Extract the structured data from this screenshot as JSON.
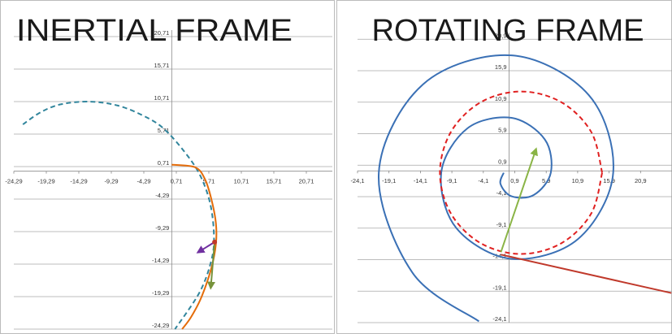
{
  "chart_data": [
    {
      "type": "line",
      "title": "INERTIAL FRAME",
      "grid": "y",
      "xlim": [
        -24.29,
        24.71
      ],
      "ylim": [
        -24.29,
        21.71
      ],
      "xticks": [
        {
          "value": -24.29,
          "label": "-24,29"
        },
        {
          "value": -19.29,
          "label": "-19,29"
        },
        {
          "value": -14.29,
          "label": "-14,29"
        },
        {
          "value": -9.29,
          "label": "-9,29"
        },
        {
          "value": -4.29,
          "label": "-4,29"
        },
        {
          "value": 0.71,
          "label": "0,71"
        },
        {
          "value": 5.71,
          "label": "5,71"
        },
        {
          "value": 10.71,
          "label": "10,71"
        },
        {
          "value": 15.71,
          "label": "15,71"
        },
        {
          "value": 20.71,
          "label": "20,71"
        }
      ],
      "yticks": [
        {
          "value": 20.71,
          "label": "20,71"
        },
        {
          "value": 15.71,
          "label": "15,71"
        },
        {
          "value": 10.71,
          "label": "10,71"
        },
        {
          "value": 5.71,
          "label": "5,71"
        },
        {
          "value": 0.71,
          "label": "0,71"
        },
        {
          "value": -4.29,
          "label": "-4,29"
        },
        {
          "value": -9.29,
          "label": "-9,29"
        },
        {
          "value": -14.29,
          "label": "-14,29"
        },
        {
          "value": -19.29,
          "label": "-19,29"
        },
        {
          "value": -24.29,
          "label": "-24,29"
        }
      ],
      "series": [
        {
          "color": "#31859c",
          "dashed": true,
          "smooth": true,
          "x": [
            -22.9,
            -20.1,
            -17.0,
            -12.6,
            -8.3,
            -4.5,
            -1.4,
            1.8,
            4.3,
            5.9,
            6.5,
            6.1,
            4.3,
            0.5
          ],
          "y": [
            7.2,
            9.1,
            10.3,
            10.7,
            10.1,
            8.6,
            6.7,
            3.2,
            -0.5,
            -4.9,
            -9.9,
            -13.7,
            -18.6,
            -24.3
          ]
        },
        {
          "color": "#e46c0a",
          "smooth": true,
          "x": [
            0,
            3.6,
            5.1,
            6.1,
            6.8,
            6.8,
            6.1,
            4.6,
            3.0,
            1.6
          ],
          "y": [
            1.0,
            0.6,
            -1.2,
            -4.3,
            -8.0,
            -11.2,
            -14.9,
            -19.3,
            -22.4,
            -24.3
          ]
        },
        {
          "color": "#7030a0",
          "arrow": true,
          "x": [
            6.6,
            4.0
          ],
          "y": [
            -10.9,
            -12.5
          ]
        },
        {
          "color": "#77933c",
          "arrow": true,
          "x": [
            6.6,
            6.0
          ],
          "y": [
            -10.9,
            -18.0
          ]
        },
        {
          "color": "#c0392b",
          "marker": true,
          "x": [
            6.6
          ],
          "y": [
            -10.9
          ]
        }
      ]
    },
    {
      "type": "line",
      "title": "ROTATING FRAME",
      "grid": "y",
      "xlim": [
        -24.1,
        25.9
      ],
      "ylim": [
        -24.1,
        21.9
      ],
      "xticks": [
        {
          "value": -24.1,
          "label": "-24,1"
        },
        {
          "value": -19.1,
          "label": "-19,1"
        },
        {
          "value": -14.1,
          "label": "-14,1"
        },
        {
          "value": -9.1,
          "label": "-9,1"
        },
        {
          "value": -4.1,
          "label": "-4,1"
        },
        {
          "value": 0.9,
          "label": "0,9"
        },
        {
          "value": 5.9,
          "label": "5,9"
        },
        {
          "value": 10.9,
          "label": "10,9"
        },
        {
          "value": 15.9,
          "label": "15,9"
        },
        {
          "value": 20.9,
          "label": "20,9"
        }
      ],
      "yticks": [
        {
          "value": 20.9,
          "label": "20,9"
        },
        {
          "value": 15.9,
          "label": "15,9"
        },
        {
          "value": 10.9,
          "label": "10,9"
        },
        {
          "value": 5.9,
          "label": "5,9"
        },
        {
          "value": 0.9,
          "label": "0,9"
        },
        {
          "value": -4.1,
          "label": "-4,1"
        },
        {
          "value": -9.1,
          "label": "-9,1"
        },
        {
          "value": -14.1,
          "label": "-14,1"
        },
        {
          "value": -19.1,
          "label": "-19,1"
        },
        {
          "value": -24.1,
          "label": "-24,1"
        }
      ],
      "series": [
        {
          "color": "#3a70b5",
          "smooth": true,
          "x": [
            -0.86,
            -1.37,
            0.4,
            3.93,
            6.63,
            5.68,
            0.4,
            -6.64,
            -10.79,
            -8.39,
            0.4,
            10.94,
            16.55,
            12.7,
            0.4,
            -13.66,
            -20.72,
            -15.41,
            -4.8
          ],
          "y": [
            -0.3,
            -2.07,
            -4.05,
            -3.83,
            -0.3,
            4.98,
            8.41,
            6.74,
            -0.3,
            -9.09,
            -13.97,
            -10.84,
            -0.3,
            11.99,
            18.34,
            13.76,
            -0.3,
            -16.11,
            -23.9
          ]
        },
        {
          "color": "#e02020",
          "dashed": true,
          "smooth": true,
          "x": [
            14.8,
            13.07,
            8.35,
            1.9,
            -4.55,
            -9.27,
            -11.0,
            -9.27,
            -4.55,
            1.9,
            8.35,
            13.07,
            14.8
          ],
          "y": [
            -0.3,
            6.15,
            10.87,
            12.6,
            10.87,
            6.15,
            -0.3,
            -6.75,
            -11.47,
            -13.2,
            -11.47,
            -6.75,
            -0.3
          ]
        },
        {
          "color": "#c0392b",
          "x": [
            -1.3,
            25.8
          ],
          "y": [
            -13.3,
            -19.4
          ]
        },
        {
          "color": "#8ab446",
          "arrow": true,
          "x": [
            -1.3,
            4.3
          ],
          "y": [
            -12.9,
            3.5
          ]
        }
      ]
    }
  ]
}
